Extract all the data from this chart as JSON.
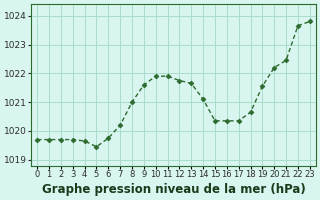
{
  "hours": [
    0,
    1,
    2,
    3,
    4,
    5,
    6,
    7,
    8,
    9,
    10,
    11,
    12,
    13,
    14,
    15,
    16,
    17,
    18,
    19,
    20,
    21,
    22,
    23
  ],
  "pressure": [
    1019.7,
    1019.7,
    1019.7,
    1019.7,
    1019.65,
    1019.45,
    1019.75,
    1020.2,
    1021.0,
    1021.6,
    1021.9,
    1021.9,
    1021.75,
    1021.65,
    1021.1,
    1020.35,
    1020.35,
    1020.35,
    1020.65,
    1021.55,
    1022.2,
    1022.45,
    1023.65,
    1023.8
  ],
  "line_color": "#2d6a2d",
  "marker_color": "#2d6a2d",
  "bg_color": "#d8f5f0",
  "grid_color": "#aaddcc",
  "xlabel": "Graphe pression niveau de la mer (hPa)",
  "yticks": [
    1019,
    1020,
    1021,
    1022,
    1023,
    1024
  ],
  "ylim": [
    1018.8,
    1024.4
  ],
  "xlim": [
    -0.5,
    23.5
  ],
  "xtick_labels": [
    "0",
    "1",
    "2",
    "3",
    "4",
    "5",
    "6",
    "7",
    "8",
    "9",
    "10",
    "11",
    "12",
    "13",
    "14",
    "15",
    "16",
    "17",
    "18",
    "19",
    "20",
    "21",
    "22",
    "23"
  ],
  "xlabel_fontsize": 8.5,
  "tick_fontsize": 6.5
}
